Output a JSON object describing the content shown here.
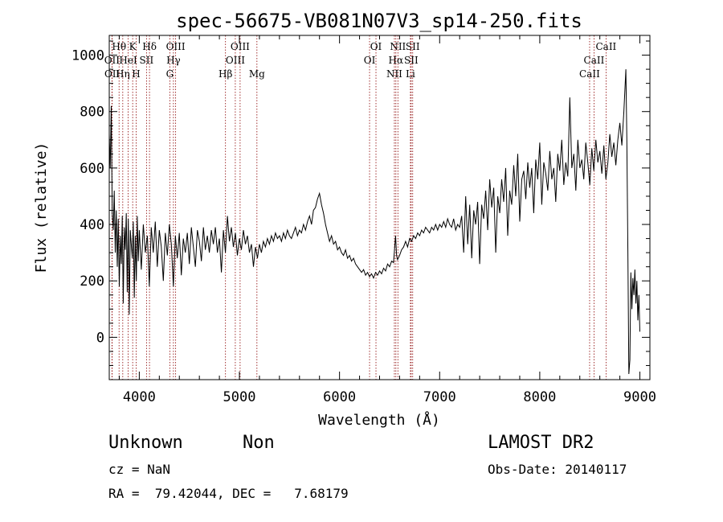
{
  "chart_data": {
    "type": "line",
    "title": "spec-56675-VB081N07V3_sp14-250.fits",
    "xlabel": "Wavelength (Å)",
    "ylabel": "Flux (relative)",
    "xlim": [
      3700,
      9100
    ],
    "ylim": [
      -150,
      1070
    ],
    "xticks": [
      4000,
      5000,
      6000,
      7000,
      8000,
      9000
    ],
    "yticks": [
      0,
      200,
      400,
      600,
      800,
      1000
    ],
    "grid": false,
    "series": [
      {
        "points": [
          [
            3700,
            720
          ],
          [
            3710,
            600
          ],
          [
            3720,
            820
          ],
          [
            3730,
            440
          ],
          [
            3740,
            380
          ],
          [
            3750,
            520
          ],
          [
            3760,
            300
          ],
          [
            3770,
            450
          ],
          [
            3780,
            250
          ],
          [
            3790,
            420
          ],
          [
            3800,
            180
          ],
          [
            3810,
            360
          ],
          [
            3820,
            260
          ],
          [
            3830,
            430
          ],
          [
            3840,
            120
          ],
          [
            3850,
            390
          ],
          [
            3860,
            310
          ],
          [
            3870,
            440
          ],
          [
            3880,
            160
          ],
          [
            3890,
            420
          ],
          [
            3900,
            80
          ],
          [
            3910,
            380
          ],
          [
            3920,
            330
          ],
          [
            3930,
            280
          ],
          [
            3940,
            410
          ],
          [
            3950,
            140
          ],
          [
            3960,
            360
          ],
          [
            3970,
            200
          ],
          [
            3980,
            430
          ],
          [
            3990,
            270
          ],
          [
            4000,
            380
          ],
          [
            4020,
            240
          ],
          [
            4040,
            400
          ],
          [
            4060,
            300
          ],
          [
            4080,
            360
          ],
          [
            4100,
            180
          ],
          [
            4120,
            390
          ],
          [
            4140,
            300
          ],
          [
            4160,
            410
          ],
          [
            4180,
            250
          ],
          [
            4200,
            380
          ],
          [
            4220,
            320
          ],
          [
            4240,
            200
          ],
          [
            4260,
            370
          ],
          [
            4280,
            290
          ],
          [
            4300,
            400
          ],
          [
            4320,
            330
          ],
          [
            4340,
            180
          ],
          [
            4360,
            360
          ],
          [
            4380,
            280
          ],
          [
            4400,
            370
          ],
          [
            4420,
            220
          ],
          [
            4440,
            350
          ],
          [
            4460,
            300
          ],
          [
            4480,
            370
          ],
          [
            4500,
            260
          ],
          [
            4520,
            390
          ],
          [
            4540,
            320
          ],
          [
            4560,
            250
          ],
          [
            4580,
            380
          ],
          [
            4600,
            340
          ],
          [
            4620,
            270
          ],
          [
            4640,
            390
          ],
          [
            4660,
            310
          ],
          [
            4680,
            360
          ],
          [
            4700,
            300
          ],
          [
            4720,
            380
          ],
          [
            4740,
            330
          ],
          [
            4760,
            390
          ],
          [
            4780,
            300
          ],
          [
            4800,
            350
          ],
          [
            4820,
            230
          ],
          [
            4840,
            380
          ],
          [
            4860,
            300
          ],
          [
            4880,
            430
          ],
          [
            4900,
            340
          ],
          [
            4920,
            390
          ],
          [
            4940,
            320
          ],
          [
            4960,
            370
          ],
          [
            4980,
            290
          ],
          [
            5000,
            350
          ],
          [
            5020,
            310
          ],
          [
            5040,
            380
          ],
          [
            5060,
            330
          ],
          [
            5080,
            360
          ],
          [
            5100,
            300
          ],
          [
            5120,
            330
          ],
          [
            5140,
            250
          ],
          [
            5160,
            320
          ],
          [
            5180,
            280
          ],
          [
            5200,
            330
          ],
          [
            5220,
            300
          ],
          [
            5240,
            340
          ],
          [
            5260,
            320
          ],
          [
            5280,
            350
          ],
          [
            5300,
            330
          ],
          [
            5320,
            360
          ],
          [
            5340,
            340
          ],
          [
            5360,
            370
          ],
          [
            5380,
            350
          ],
          [
            5400,
            360
          ],
          [
            5420,
            340
          ],
          [
            5440,
            370
          ],
          [
            5460,
            350
          ],
          [
            5480,
            380
          ],
          [
            5500,
            360
          ],
          [
            5520,
            350
          ],
          [
            5540,
            370
          ],
          [
            5560,
            390
          ],
          [
            5580,
            360
          ],
          [
            5600,
            380
          ],
          [
            5620,
            370
          ],
          [
            5640,
            400
          ],
          [
            5660,
            380
          ],
          [
            5680,
            410
          ],
          [
            5700,
            430
          ],
          [
            5720,
            400
          ],
          [
            5740,
            450
          ],
          [
            5760,
            460
          ],
          [
            5780,
            490
          ],
          [
            5800,
            510
          ],
          [
            5820,
            470
          ],
          [
            5840,
            440
          ],
          [
            5860,
            400
          ],
          [
            5880,
            370
          ],
          [
            5900,
            340
          ],
          [
            5920,
            360
          ],
          [
            5940,
            330
          ],
          [
            5960,
            340
          ],
          [
            5980,
            310
          ],
          [
            6000,
            320
          ],
          [
            6020,
            300
          ],
          [
            6040,
            290
          ],
          [
            6060,
            310
          ],
          [
            6080,
            280
          ],
          [
            6100,
            290
          ],
          [
            6120,
            270
          ],
          [
            6140,
            280
          ],
          [
            6160,
            260
          ],
          [
            6180,
            250
          ],
          [
            6200,
            240
          ],
          [
            6220,
            230
          ],
          [
            6240,
            240
          ],
          [
            6260,
            220
          ],
          [
            6280,
            230
          ],
          [
            6300,
            215
          ],
          [
            6320,
            225
          ],
          [
            6340,
            210
          ],
          [
            6360,
            230
          ],
          [
            6380,
            220
          ],
          [
            6400,
            235
          ],
          [
            6420,
            225
          ],
          [
            6440,
            245
          ],
          [
            6460,
            235
          ],
          [
            6480,
            260
          ],
          [
            6500,
            250
          ],
          [
            6520,
            270
          ],
          [
            6540,
            265
          ],
          [
            6560,
            360
          ],
          [
            6570,
            290
          ],
          [
            6580,
            275
          ],
          [
            6600,
            290
          ],
          [
            6620,
            310
          ],
          [
            6640,
            320
          ],
          [
            6660,
            340
          ],
          [
            6680,
            320
          ],
          [
            6700,
            350
          ],
          [
            6720,
            340
          ],
          [
            6740,
            360
          ],
          [
            6760,
            350
          ],
          [
            6780,
            370
          ],
          [
            6800,
            360
          ],
          [
            6820,
            380
          ],
          [
            6840,
            370
          ],
          [
            6860,
            390
          ],
          [
            6880,
            380
          ],
          [
            6900,
            370
          ],
          [
            6920,
            390
          ],
          [
            6940,
            380
          ],
          [
            6960,
            400
          ],
          [
            6980,
            380
          ],
          [
            7000,
            400
          ],
          [
            7020,
            390
          ],
          [
            7040,
            410
          ],
          [
            7060,
            390
          ],
          [
            7080,
            420
          ],
          [
            7100,
            400
          ],
          [
            7120,
            390
          ],
          [
            7140,
            420
          ],
          [
            7160,
            380
          ],
          [
            7180,
            400
          ],
          [
            7200,
            390
          ],
          [
            7220,
            430
          ],
          [
            7240,
            300
          ],
          [
            7260,
            500
          ],
          [
            7280,
            330
          ],
          [
            7300,
            470
          ],
          [
            7320,
            280
          ],
          [
            7340,
            450
          ],
          [
            7360,
            400
          ],
          [
            7380,
            480
          ],
          [
            7400,
            260
          ],
          [
            7420,
            470
          ],
          [
            7440,
            420
          ],
          [
            7460,
            520
          ],
          [
            7480,
            380
          ],
          [
            7500,
            560
          ],
          [
            7520,
            460
          ],
          [
            7540,
            530
          ],
          [
            7560,
            300
          ],
          [
            7580,
            500
          ],
          [
            7600,
            440
          ],
          [
            7620,
            560
          ],
          [
            7640,
            480
          ],
          [
            7660,
            600
          ],
          [
            7680,
            360
          ],
          [
            7700,
            520
          ],
          [
            7720,
            470
          ],
          [
            7740,
            610
          ],
          [
            7760,
            500
          ],
          [
            7780,
            650
          ],
          [
            7800,
            410
          ],
          [
            7820,
            560
          ],
          [
            7840,
            590
          ],
          [
            7860,
            490
          ],
          [
            7880,
            620
          ],
          [
            7900,
            530
          ],
          [
            7920,
            600
          ],
          [
            7940,
            440
          ],
          [
            7960,
            630
          ],
          [
            7980,
            560
          ],
          [
            8000,
            690
          ],
          [
            8020,
            470
          ],
          [
            8040,
            620
          ],
          [
            8060,
            580
          ],
          [
            8080,
            520
          ],
          [
            8100,
            660
          ],
          [
            8120,
            560
          ],
          [
            8140,
            600
          ],
          [
            8160,
            480
          ],
          [
            8180,
            650
          ],
          [
            8200,
            590
          ],
          [
            8220,
            700
          ],
          [
            8240,
            540
          ],
          [
            8260,
            620
          ],
          [
            8280,
            570
          ],
          [
            8300,
            850
          ],
          [
            8320,
            600
          ],
          [
            8340,
            650
          ],
          [
            8360,
            520
          ],
          [
            8380,
            700
          ],
          [
            8400,
            600
          ],
          [
            8420,
            630
          ],
          [
            8440,
            560
          ],
          [
            8460,
            690
          ],
          [
            8480,
            620
          ],
          [
            8500,
            540
          ],
          [
            8520,
            670
          ],
          [
            8540,
            590
          ],
          [
            8560,
            700
          ],
          [
            8580,
            620
          ],
          [
            8600,
            660
          ],
          [
            8620,
            580
          ],
          [
            8640,
            680
          ],
          [
            8660,
            560
          ],
          [
            8680,
            620
          ],
          [
            8700,
            720
          ],
          [
            8720,
            640
          ],
          [
            8740,
            690
          ],
          [
            8760,
            610
          ],
          [
            8780,
            700
          ],
          [
            8800,
            760
          ],
          [
            8820,
            680
          ],
          [
            8840,
            800
          ],
          [
            8860,
            950
          ],
          [
            8870,
            700
          ],
          [
            8880,
            300
          ],
          [
            8890,
            -130
          ],
          [
            8900,
            -80
          ],
          [
            8910,
            230
          ],
          [
            8920,
            100
          ],
          [
            8930,
            210
          ],
          [
            8940,
            150
          ],
          [
            8950,
            240
          ],
          [
            8960,
            120
          ],
          [
            8970,
            200
          ],
          [
            8980,
            60
          ],
          [
            8990,
            150
          ],
          [
            9000,
            20
          ]
        ]
      }
    ],
    "line_markers": [
      {
        "label": "Hθ",
        "x": 3798,
        "row": 0
      },
      {
        "label": "K",
        "x": 3934,
        "row": 0
      },
      {
        "label": "Hδ",
        "x": 4102,
        "row": 0
      },
      {
        "label": "OII",
        "x": 3727,
        "row": 1
      },
      {
        "label": "HeI",
        "x": 3889,
        "row": 1
      },
      {
        "label": "SII",
        "x": 4072,
        "row": 1
      },
      {
        "label": "OII",
        "x": 3729,
        "row": 2
      },
      {
        "label": "Hη",
        "x": 3835,
        "row": 2
      },
      {
        "label": "H",
        "x": 3969,
        "row": 2
      },
      {
        "label": "OIII",
        "x": 4363,
        "row": 0
      },
      {
        "label": "Hγ",
        "x": 4341,
        "row": 1
      },
      {
        "label": "G",
        "x": 4305,
        "row": 2
      },
      {
        "label": "Hβ",
        "x": 4861,
        "row": 2
      },
      {
        "label": "OIII",
        "x": 5007,
        "row": 0
      },
      {
        "label": "OIII",
        "x": 4959,
        "row": 1
      },
      {
        "label": "Mg",
        "x": 5175,
        "row": 2
      },
      {
        "label": "OI",
        "x": 6364,
        "row": 0
      },
      {
        "label": "OI",
        "x": 6300,
        "row": 1
      },
      {
        "label": "NII",
        "x": 6583,
        "row": 0
      },
      {
        "label": "Hα",
        "x": 6563,
        "row": 1
      },
      {
        "label": "NII",
        "x": 6548,
        "row": 2
      },
      {
        "label": "SII",
        "x": 6731,
        "row": 0
      },
      {
        "label": "SII",
        "x": 6716,
        "row": 1
      },
      {
        "label": "Li",
        "x": 6708,
        "row": 2
      },
      {
        "label": "CaII",
        "x": 8662,
        "row": 0
      },
      {
        "label": "CaII",
        "x": 8542,
        "row": 1
      },
      {
        "label": "CaII",
        "x": 8498,
        "row": 2
      }
    ],
    "line_color": "#8b0000"
  },
  "info": {
    "class": "Unknown",
    "subclass": "Non",
    "survey": "LAMOST DR2",
    "cz": "cz = NaN",
    "obs_date": "Obs-Date: 20140117",
    "coords": "RA =  79.42044, DEC =   7.68179"
  }
}
